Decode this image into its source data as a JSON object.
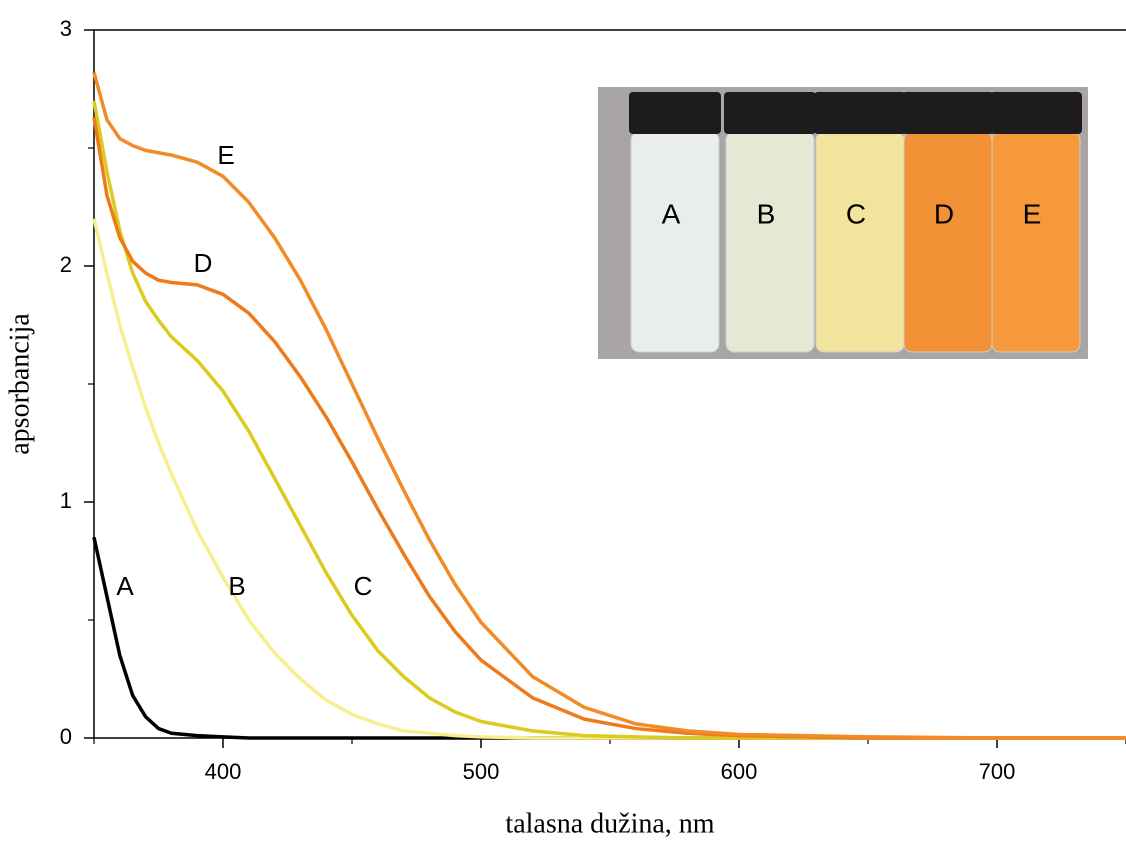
{
  "chart_data": {
    "type": "line",
    "x_label": "talasna dužina, nm",
    "y_label": "apsorbancija",
    "xlim": [
      350,
      750
    ],
    "ylim": [
      0,
      3
    ],
    "xticks": [
      400,
      500,
      600,
      700
    ],
    "yticks": [
      0,
      1,
      2,
      3
    ],
    "x_minor_ticks": [
      350,
      450,
      550,
      650,
      750
    ],
    "y_minor_ticks": [
      0.5,
      1.5,
      2.5
    ],
    "x": [
      350,
      355,
      360,
      365,
      370,
      375,
      380,
      390,
      400,
      410,
      420,
      430,
      440,
      450,
      460,
      470,
      480,
      490,
      500,
      520,
      540,
      560,
      580,
      600,
      650,
      700,
      750
    ],
    "series": [
      {
        "name": "A",
        "color": "#000000",
        "values": [
          0.85,
          0.6,
          0.35,
          0.18,
          0.09,
          0.04,
          0.02,
          0.01,
          0.005,
          0,
          0,
          0,
          0,
          0,
          0,
          0,
          0,
          0,
          0,
          0,
          0,
          0,
          0,
          0,
          0,
          0,
          0
        ]
      },
      {
        "name": "B",
        "color": "#f7ef8e",
        "values": [
          2.2,
          1.97,
          1.75,
          1.57,
          1.4,
          1.25,
          1.12,
          0.88,
          0.68,
          0.5,
          0.36,
          0.25,
          0.16,
          0.1,
          0.06,
          0.03,
          0.02,
          0.01,
          0.005,
          0,
          0,
          0,
          0,
          0,
          0,
          0,
          0
        ]
      },
      {
        "name": "C",
        "color": "#dccb1e",
        "values": [
          2.7,
          2.4,
          2.15,
          1.97,
          1.85,
          1.77,
          1.7,
          1.6,
          1.47,
          1.3,
          1.1,
          0.9,
          0.7,
          0.52,
          0.37,
          0.26,
          0.17,
          0.11,
          0.07,
          0.03,
          0.01,
          0.005,
          0,
          0,
          0,
          0,
          0
        ]
      },
      {
        "name": "D",
        "color": "#ee7a1c",
        "values": [
          2.63,
          2.3,
          2.12,
          2.02,
          1.97,
          1.94,
          1.93,
          1.92,
          1.88,
          1.8,
          1.68,
          1.53,
          1.36,
          1.17,
          0.97,
          0.78,
          0.6,
          0.45,
          0.33,
          0.17,
          0.08,
          0.04,
          0.02,
          0.01,
          0,
          0,
          0
        ]
      },
      {
        "name": "E",
        "color": "#f28a26",
        "values": [
          2.82,
          2.62,
          2.54,
          2.51,
          2.49,
          2.48,
          2.47,
          2.44,
          2.38,
          2.27,
          2.12,
          1.94,
          1.73,
          1.5,
          1.27,
          1.05,
          0.84,
          0.65,
          0.49,
          0.26,
          0.13,
          0.06,
          0.03,
          0.015,
          0.005,
          0,
          0
        ]
      }
    ],
    "inset_labels": [
      "A",
      "B",
      "C",
      "D",
      "E"
    ]
  }
}
